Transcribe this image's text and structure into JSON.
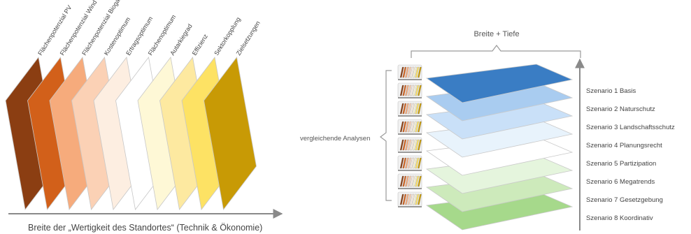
{
  "left_diagram": {
    "layers": [
      {
        "label": "Flächenpotenzial PV",
        "color": "#8b3e12"
      },
      {
        "label": "Flächenpotenzial Wind",
        "color": "#d2601a"
      },
      {
        "label": "Flächenpotenzial Biogas",
        "color": "#f6ab7c"
      },
      {
        "label": "Kostenoptimum",
        "color": "#fbd1b5"
      },
      {
        "label": "Ertragsoptimum",
        "color": "#fdeee1"
      },
      {
        "label": "Flächenoptimum",
        "color": "#ffffff"
      },
      {
        "label": "Autarkiegrad",
        "color": "#fef8d6"
      },
      {
        "label": "Effizienz",
        "color": "#fde9a0"
      },
      {
        "label": "Sektorkopplung",
        "color": "#fde264"
      },
      {
        "label": "Zielsetzungen",
        "color": "#c89a05"
      }
    ],
    "axis_label": "Breite der „Wertigkeit des Standortes“ (Technik & Ökonomie)"
  },
  "right_diagram": {
    "top_label": "Breite + Tiefe",
    "side_label": "vergleichende Analysen",
    "scenarios": [
      {
        "label": "Szenario 1 Basis",
        "color": "#3a7dc4"
      },
      {
        "label": "Szenario 2 Naturschutz",
        "color": "#a9ccf0"
      },
      {
        "label": "Szenario 3 Landschaftsschutz",
        "color": "#c9e0f8"
      },
      {
        "label": "Szenario 4 Planungsrecht",
        "color": "#e8f3fc"
      },
      {
        "label": "Szenario 5 Partizipation",
        "color": "#ffffff"
      },
      {
        "label": "Szenario 6 Megatrends",
        "color": "#e5f5dd"
      },
      {
        "label": "Szenario 7 Gesetzgebung",
        "color": "#cdeabb"
      },
      {
        "label": "Szenario 8 Koordinativ",
        "color": "#a6d98b"
      }
    ],
    "stack_colors": [
      "#8b3e12",
      "#d2601a",
      "#f6ab7c",
      "#fbd1b5",
      "#fdeee1",
      "#fef8d6",
      "#fde264",
      "#c89a05"
    ]
  }
}
